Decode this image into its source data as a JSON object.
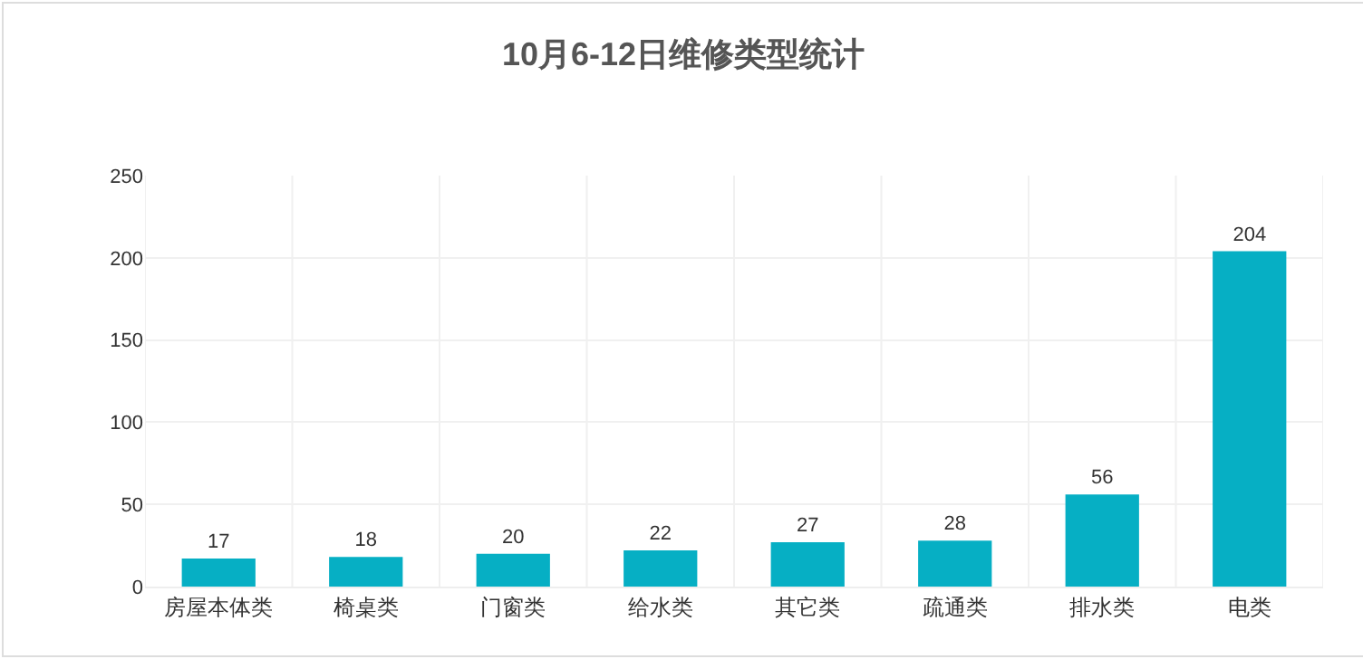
{
  "chart_data": {
    "type": "bar",
    "title": "10月6-12日维修类型统计",
    "categories": [
      "房屋本体类",
      "椅桌类",
      "门窗类",
      "给水类",
      "其它类",
      "疏通类",
      "排水类",
      "电类"
    ],
    "values": [
      17,
      18,
      20,
      22,
      27,
      28,
      56,
      204
    ],
    "color": "#06afc4",
    "ylim": [
      0,
      250
    ],
    "yticks": [
      0,
      50,
      100,
      150,
      200,
      250
    ],
    "grid": true,
    "data_labels": true
  }
}
